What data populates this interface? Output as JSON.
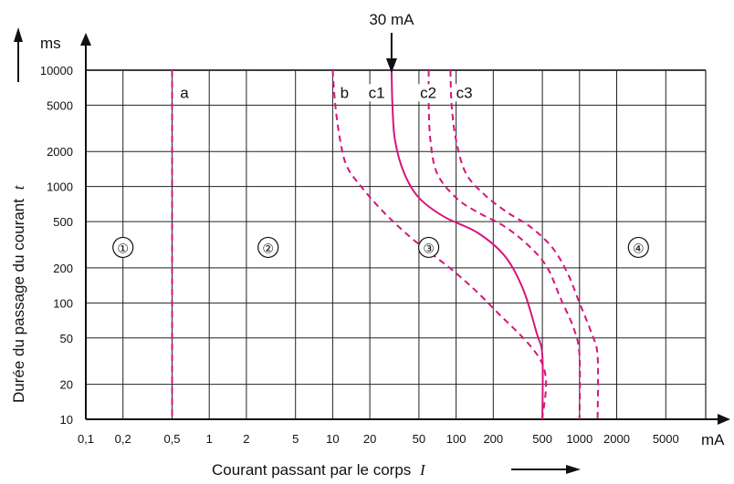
{
  "chart_data": {
    "type": "line",
    "title": "",
    "xlabel": "Courant passant par le corps",
    "xlabel_symbol": "I",
    "ylabel": "Durée du passage du courant",
    "ylabel_symbol": "t",
    "x_unit": "mA",
    "y_unit": "ms",
    "x_scale": "log",
    "y_scale": "log",
    "xlim": [
      0.1,
      10000
    ],
    "ylim": [
      10,
      10000
    ],
    "grid": true,
    "x_ticks": [
      0.1,
      0.2,
      0.5,
      1,
      2,
      5,
      10,
      20,
      50,
      100,
      200,
      500,
      1000,
      2000,
      5000
    ],
    "x_tick_labels": [
      "0,1",
      "0,2",
      "0,5",
      "1",
      "2",
      "5",
      "10",
      "20",
      "50",
      "100",
      "200",
      "500",
      "1000",
      "2000",
      "5000"
    ],
    "y_ticks": [
      10,
      20,
      50,
      100,
      200,
      500,
      1000,
      2000,
      5000,
      10000
    ],
    "y_tick_labels": [
      "10",
      "20",
      "50",
      "100",
      "200",
      "500",
      "1000",
      "2000",
      "5000",
      "10000"
    ],
    "colors": {
      "curve": "#d6157a",
      "axis": "#111111",
      "grid": "#222222"
    },
    "annotation": {
      "text": "30 mA",
      "x": 30
    },
    "zones": [
      {
        "label": "①",
        "x": 0.2,
        "y": 300
      },
      {
        "label": "②",
        "x": 3,
        "y": 300
      },
      {
        "label": "③",
        "x": 60,
        "y": 300
      },
      {
        "label": "④",
        "x": 3000,
        "y": 300
      }
    ],
    "series": [
      {
        "name": "a",
        "style": "dashed",
        "label_pos": {
          "x": 0.58,
          "y": 6000
        },
        "points": [
          [
            0.5,
            10000
          ],
          [
            0.5,
            10
          ]
        ]
      },
      {
        "name": "b",
        "style": "dashed",
        "label_pos": {
          "x": 11.5,
          "y": 6000
        },
        "points": [
          [
            10,
            10000
          ],
          [
            10.5,
            5000
          ],
          [
            11.5,
            2500
          ],
          [
            13,
            1500
          ],
          [
            17,
            1000
          ],
          [
            26,
            600
          ],
          [
            45,
            350
          ],
          [
            100,
            180
          ],
          [
            200,
            90
          ],
          [
            500,
            30
          ],
          [
            500,
            10
          ]
        ]
      },
      {
        "name": "c1",
        "style": "solid",
        "label_pos": {
          "x": 19.5,
          "y": 6000
        },
        "points": [
          [
            30,
            10000
          ],
          [
            30.5,
            5000
          ],
          [
            32,
            2500
          ],
          [
            38,
            1300
          ],
          [
            50,
            800
          ],
          [
            80,
            550
          ],
          [
            150,
            400
          ],
          [
            250,
            250
          ],
          [
            350,
            130
          ],
          [
            450,
            55
          ],
          [
            500,
            35
          ],
          [
            500,
            10
          ]
        ]
      },
      {
        "name": "c2",
        "style": "dashed",
        "label_pos": {
          "x": 51,
          "y": 6000
        },
        "points": [
          [
            60,
            10000
          ],
          [
            60,
            5000
          ],
          [
            62,
            2500
          ],
          [
            70,
            1300
          ],
          [
            100,
            800
          ],
          [
            150,
            600
          ],
          [
            250,
            450
          ],
          [
            400,
            300
          ],
          [
            550,
            200
          ],
          [
            700,
            110
          ],
          [
            900,
            60
          ],
          [
            1000,
            35
          ],
          [
            1000,
            10
          ]
        ]
      },
      {
        "name": "c3",
        "style": "dashed",
        "label_pos": {
          "x": 100,
          "y": 6000
        },
        "points": [
          [
            90,
            10000
          ],
          [
            92,
            5000
          ],
          [
            100,
            2500
          ],
          [
            120,
            1300
          ],
          [
            170,
            850
          ],
          [
            260,
            600
          ],
          [
            400,
            450
          ],
          [
            600,
            300
          ],
          [
            800,
            180
          ],
          [
            1000,
            100
          ],
          [
            1250,
            55
          ],
          [
            1400,
            35
          ],
          [
            1400,
            10
          ]
        ]
      }
    ]
  }
}
